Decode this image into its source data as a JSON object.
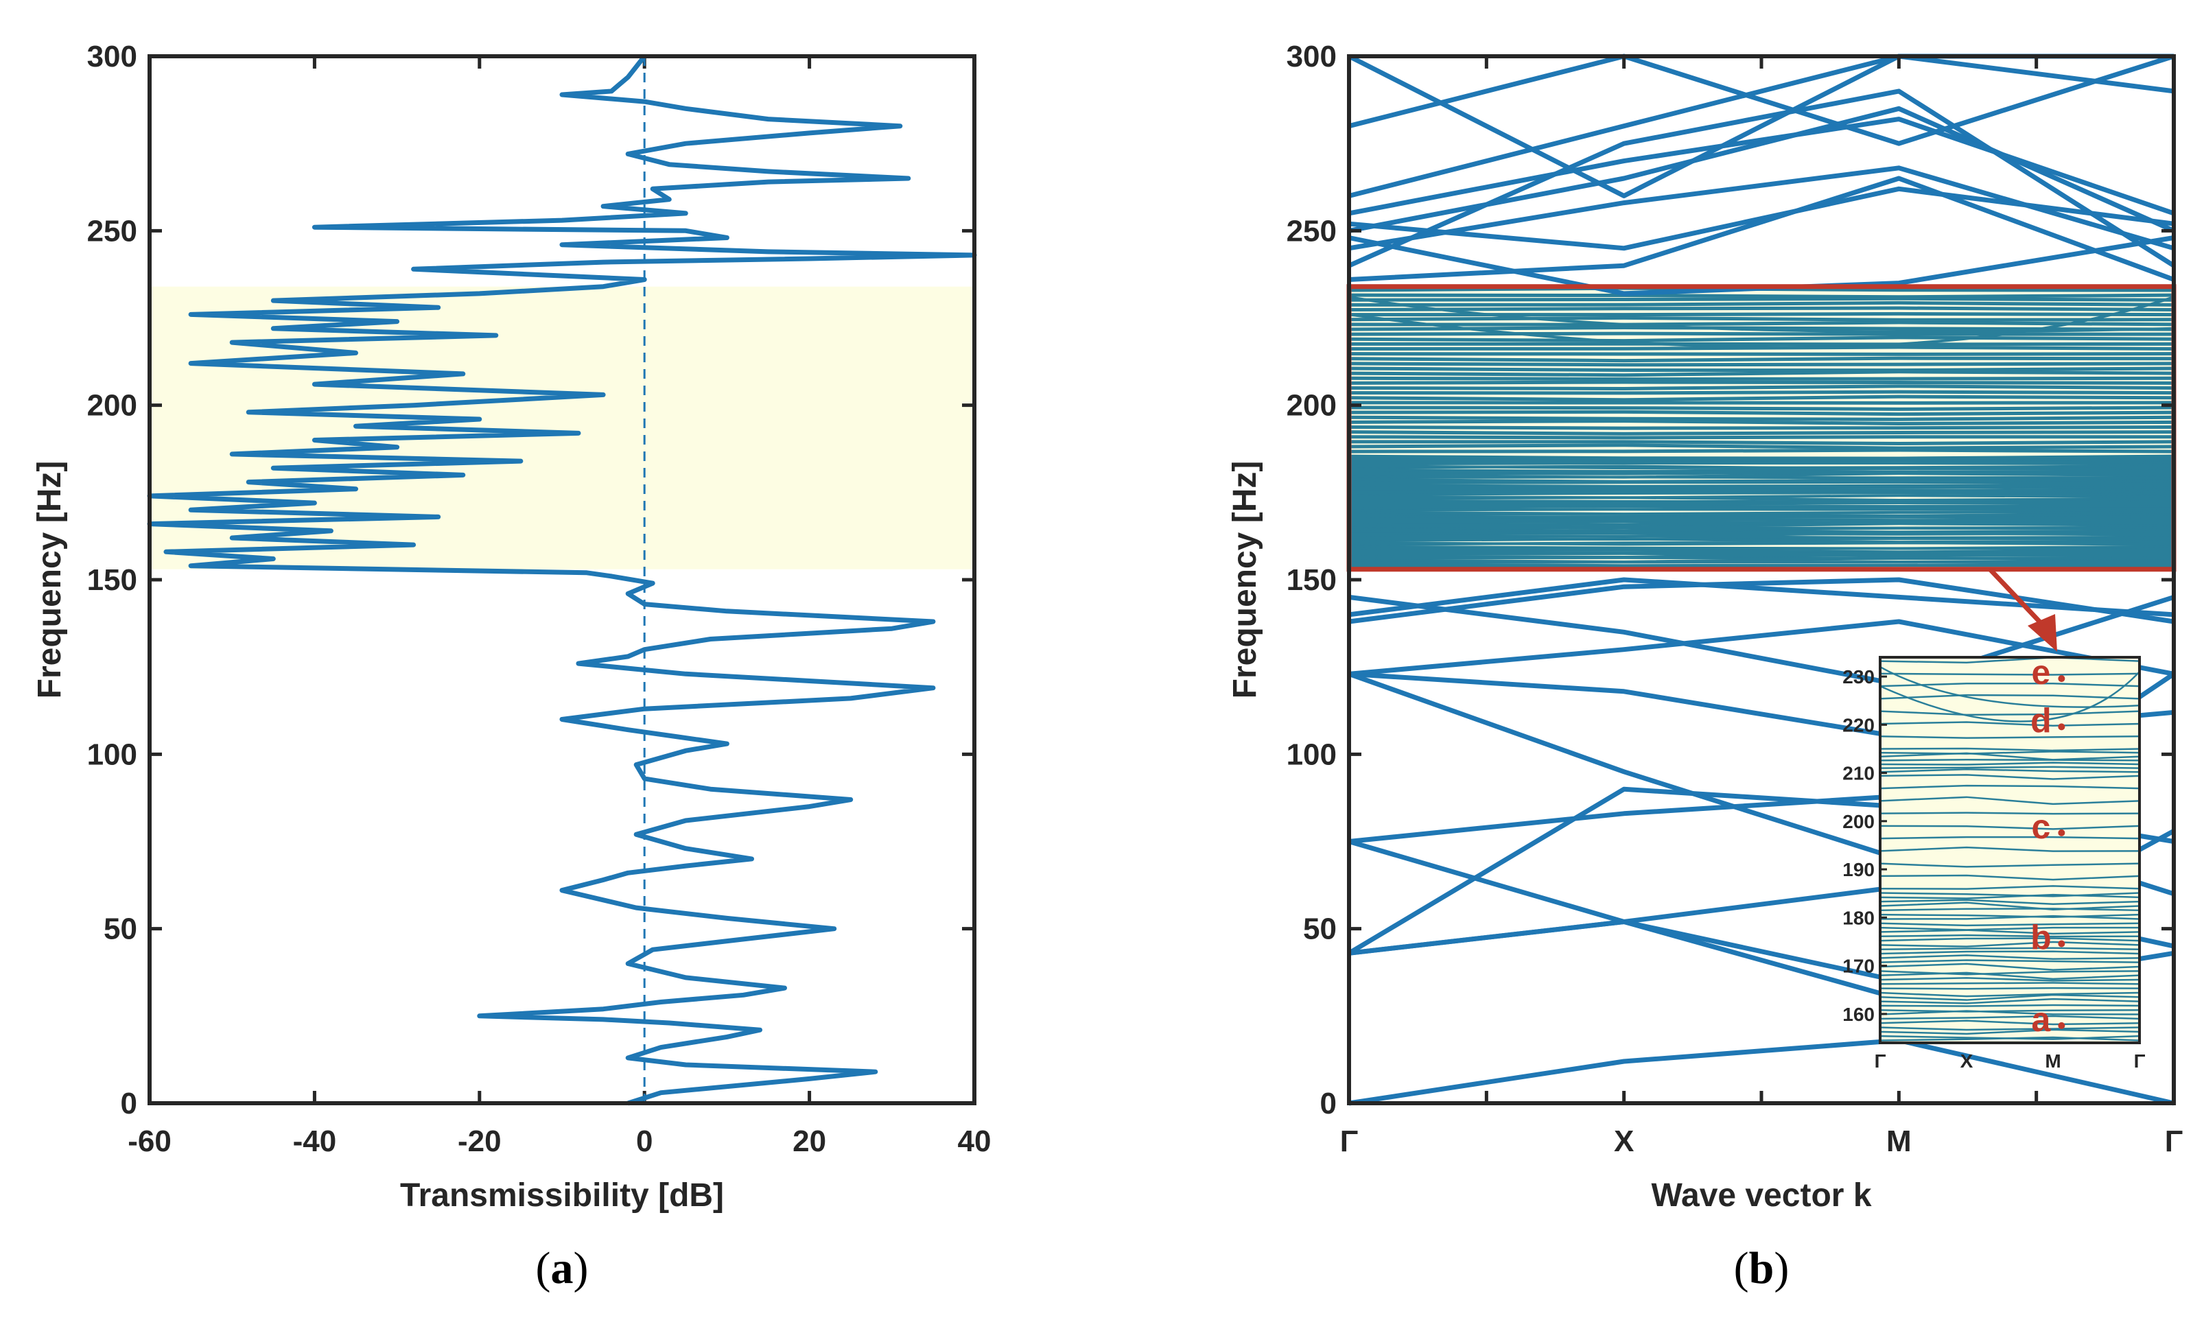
{
  "colors": {
    "curve": "#1f77b4",
    "band": "#fdfde3",
    "dense": "#2a7f9a",
    "highlight": "#c0392b",
    "axis": "#262626"
  },
  "chart_data": [
    {
      "id": "a",
      "type": "line",
      "caption_label": "a",
      "xlabel": "Transmissibility [dB]",
      "ylabel": "Frequency [Hz]",
      "xlim": [
        -60,
        40
      ],
      "ylim": [
        0,
        300
      ],
      "xticks": [
        "-60",
        "-40",
        "-20",
        "0",
        "20",
        "40"
      ],
      "yticks": [
        "0",
        "50",
        "100",
        "150",
        "200",
        "250",
        "300"
      ],
      "shaded_band": [
        153,
        234
      ],
      "reference_line_x": 0,
      "series": [
        {
          "points": [
            [
              -2,
              0
            ],
            [
              2,
              3
            ],
            [
              20,
              7
            ],
            [
              28,
              9
            ],
            [
              5,
              11
            ],
            [
              -2,
              13
            ],
            [
              2,
              16
            ],
            [
              10,
              19
            ],
            [
              14,
              21
            ],
            [
              3,
              23
            ],
            [
              -5,
              24
            ],
            [
              -20,
              25
            ],
            [
              -5,
              27
            ],
            [
              2,
              29
            ],
            [
              12,
              31
            ],
            [
              17,
              33
            ],
            [
              5,
              36
            ],
            [
              -2,
              40
            ],
            [
              1,
              44
            ],
            [
              12,
              47
            ],
            [
              23,
              50
            ],
            [
              10,
              53
            ],
            [
              -1,
              56
            ],
            [
              -10,
              61
            ],
            [
              -5,
              64
            ],
            [
              -2,
              66
            ],
            [
              5,
              68
            ],
            [
              13,
              70
            ],
            [
              5,
              73
            ],
            [
              -1,
              77
            ],
            [
              5,
              81
            ],
            [
              20,
              85
            ],
            [
              25,
              87
            ],
            [
              8,
              90
            ],
            [
              0,
              93
            ],
            [
              -1,
              97
            ],
            [
              5,
              101
            ],
            [
              10,
              103
            ],
            [
              4,
              105
            ],
            [
              -2,
              107
            ],
            [
              -10,
              110
            ],
            [
              0,
              113
            ],
            [
              25,
              116
            ],
            [
              35,
              119
            ],
            [
              20,
              121
            ],
            [
              5,
              123
            ],
            [
              -8,
              126
            ],
            [
              -2,
              128
            ],
            [
              0,
              130
            ],
            [
              8,
              133
            ],
            [
              30,
              136
            ],
            [
              35,
              138
            ],
            [
              10,
              141
            ],
            [
              0,
              143
            ],
            [
              -2,
              146
            ],
            [
              1,
              149
            ],
            [
              -4,
              151
            ],
            [
              -7,
              152
            ],
            [
              -55,
              154
            ],
            [
              -45,
              156
            ],
            [
              -58,
              158
            ],
            [
              -28,
              160
            ],
            [
              -50,
              162
            ],
            [
              -38,
              164
            ],
            [
              -60,
              166
            ],
            [
              -25,
              168
            ],
            [
              -55,
              170
            ],
            [
              -40,
              172
            ],
            [
              -60,
              174
            ],
            [
              -35,
              176
            ],
            [
              -48,
              178
            ],
            [
              -22,
              180
            ],
            [
              -45,
              182
            ],
            [
              -15,
              184
            ],
            [
              -50,
              186
            ],
            [
              -30,
              188
            ],
            [
              -40,
              190
            ],
            [
              -8,
              192
            ],
            [
              -35,
              194
            ],
            [
              -20,
              196
            ],
            [
              -48,
              198
            ],
            [
              -28,
              200
            ],
            [
              -5,
              203
            ],
            [
              -40,
              206
            ],
            [
              -22,
              209
            ],
            [
              -55,
              212
            ],
            [
              -35,
              215
            ],
            [
              -50,
              218
            ],
            [
              -18,
              220
            ],
            [
              -45,
              222
            ],
            [
              -30,
              224
            ],
            [
              -55,
              226
            ],
            [
              -25,
              228
            ],
            [
              -45,
              230
            ],
            [
              -20,
              232
            ],
            [
              -5,
              234
            ],
            [
              0,
              236
            ],
            [
              -28,
              239
            ],
            [
              -5,
              241
            ],
            [
              20,
              242
            ],
            [
              40,
              243
            ],
            [
              15,
              244
            ],
            [
              -10,
              246
            ],
            [
              10,
              248
            ],
            [
              5,
              250
            ],
            [
              -40,
              251
            ],
            [
              -10,
              253
            ],
            [
              5,
              255
            ],
            [
              -5,
              257
            ],
            [
              3,
              259
            ],
            [
              1,
              262
            ],
            [
              15,
              264
            ],
            [
              32,
              265
            ],
            [
              15,
              267
            ],
            [
              3,
              269
            ],
            [
              -2,
              272
            ],
            [
              5,
              275
            ],
            [
              20,
              278
            ],
            [
              31,
              280
            ],
            [
              15,
              282
            ],
            [
              5,
              285
            ],
            [
              0,
              287
            ],
            [
              -10,
              289
            ],
            [
              -4,
              290
            ],
            [
              -3,
              292
            ],
            [
              -2,
              294
            ],
            [
              -1,
              297
            ],
            [
              0,
              300
            ]
          ]
        }
      ]
    },
    {
      "id": "b",
      "type": "line",
      "caption_label": "b",
      "xlabel": "Wave vector k",
      "ylabel": "Frequency [Hz]",
      "ylim": [
        0,
        300
      ],
      "xtick_labels": [
        "Γ",
        "X",
        "M",
        "Γ"
      ],
      "yticks": [
        "0",
        "50",
        "100",
        "150",
        "200",
        "250",
        "300"
      ],
      "highlight_box": [
        153,
        234
      ],
      "band_lines": [
        [
          0,
          12,
          18,
          0
        ],
        [
          43,
          52,
          30,
          43
        ],
        [
          43,
          52,
          62,
          45
        ],
        [
          75,
          52,
          35,
          78
        ],
        [
          75,
          83,
          88,
          75
        ],
        [
          43,
          90,
          85,
          60
        ],
        [
          123,
          95,
          70,
          123
        ],
        [
          123,
          130,
          138,
          123
        ],
        [
          138,
          148,
          150,
          138
        ],
        [
          140,
          150,
          145,
          140
        ],
        [
          145,
          135,
          120,
          145
        ],
        [
          123,
          118,
          105,
          112
        ],
        [
          250,
          265,
          285,
          250
        ],
        [
          255,
          270,
          282,
          255
        ],
        [
          245,
          258,
          268,
          245
        ],
        [
          240,
          275,
          290,
          240
        ],
        [
          248,
          232,
          235,
          248
        ],
        [
          252,
          245,
          262,
          252
        ],
        [
          260,
          280,
          300,
          290
        ],
        [
          280,
          300,
          275,
          300
        ],
        [
          300,
          260,
          305,
          300
        ],
        [
          236,
          240,
          265,
          236
        ]
      ],
      "inset": {
        "yticks": [
          "160",
          "170",
          "180",
          "190",
          "200",
          "210",
          "220",
          "230"
        ],
        "ylim": [
          154,
          234
        ],
        "xtick_labels": [
          "Γ",
          "X",
          "M",
          "Γ"
        ],
        "annotations": [
          {
            "label": "e",
            "freq": 231
          },
          {
            "label": "d",
            "freq": 221
          },
          {
            "label": "c",
            "freq": 199
          },
          {
            "label": "b",
            "freq": 176
          },
          {
            "label": "a",
            "freq": 159
          }
        ]
      }
    }
  ]
}
